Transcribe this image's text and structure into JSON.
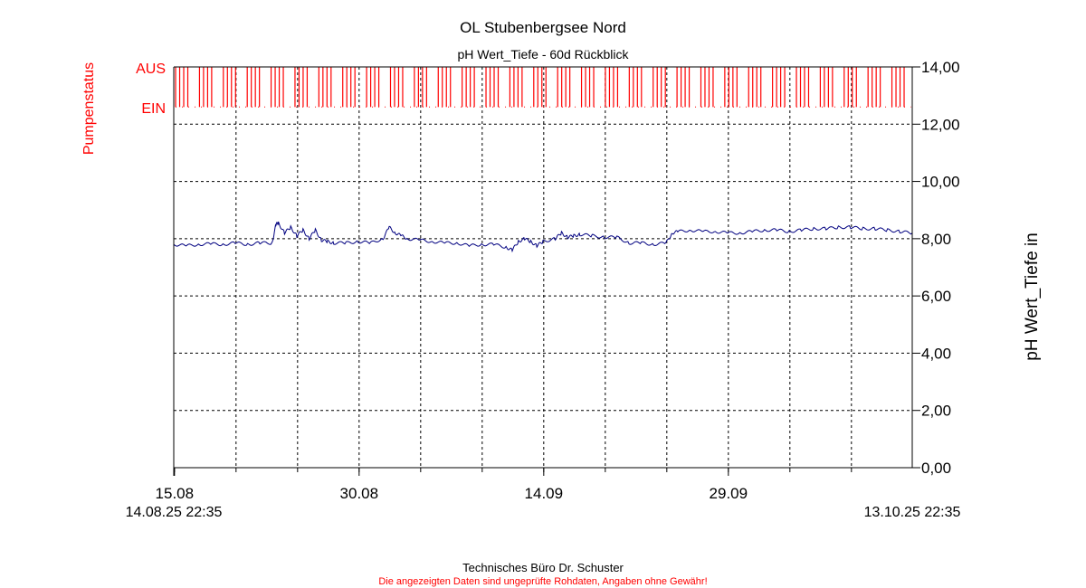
{
  "chart_data": {
    "type": "line",
    "title": "OL Stubenbergsee Nord",
    "subtitle": "pH Wert_Tiefe - 60d Rückblick",
    "ylabel_right": "pH Wert_Tiefe in",
    "ylabel_left": "Pumpenstatus",
    "y_ticks": [
      "0,00",
      "2,00",
      "4,00",
      "6,00",
      "8,00",
      "10,00",
      "12,00",
      "14,00"
    ],
    "ylim": [
      0,
      14
    ],
    "x_range_days": [
      0,
      60
    ],
    "x_ticks": [
      {
        "day": 0.06,
        "label": "15.08"
      },
      {
        "day": 15.06,
        "label": "30.08"
      },
      {
        "day": 30.06,
        "label": "14.09"
      },
      {
        "day": 45.06,
        "label": "29.09"
      }
    ],
    "x_minor_ticks_days": [
      0.06,
      5.06,
      10.06,
      15.06,
      20.06,
      25.06,
      30.06,
      35.06,
      40.06,
      45.06,
      50.06,
      55.06
    ],
    "start_label": "14.08.25 22:35",
    "end_label": "13.10.25 22:35",
    "grid": true,
    "pump_status": {
      "labels": {
        "on": "EIN",
        "off": "AUS"
      },
      "color": "#ff0000",
      "levels": {
        "on": 12.6,
        "off": 14.0
      }
    },
    "series": [
      {
        "color": "#000080",
        "x_days": [
          0,
          1,
          2,
          3,
          4,
          5,
          6,
          7,
          8,
          8.3,
          8.5,
          9,
          9.5,
          10,
          10.5,
          11,
          11.5,
          12,
          12.5,
          13,
          14,
          15,
          16,
          17,
          17.5,
          18,
          18.5,
          19,
          20,
          21,
          22,
          23,
          24,
          25,
          26,
          27,
          27.5,
          28,
          28.5,
          29,
          29.5,
          30,
          31,
          31.5,
          32,
          32.5,
          33,
          34,
          35,
          36,
          37,
          38,
          39,
          40,
          40.5,
          41,
          42,
          43,
          44,
          45,
          46,
          47,
          48,
          49,
          50,
          51,
          52,
          53,
          54,
          55,
          56,
          57,
          58,
          59,
          60
        ],
        "values": [
          7.8,
          7.75,
          7.8,
          7.82,
          7.8,
          7.85,
          7.8,
          7.85,
          7.85,
          8.5,
          8.55,
          8.2,
          8.4,
          8.1,
          8.3,
          8.0,
          8.3,
          7.95,
          7.9,
          7.85,
          7.85,
          7.9,
          7.85,
          8.0,
          8.4,
          8.2,
          8.1,
          8.0,
          7.95,
          7.9,
          7.85,
          7.85,
          7.75,
          7.8,
          7.8,
          7.7,
          7.6,
          7.9,
          8.0,
          7.9,
          7.75,
          7.9,
          8.0,
          8.2,
          8.05,
          8.1,
          8.15,
          8.1,
          8.05,
          8.05,
          7.85,
          7.85,
          7.8,
          7.85,
          8.2,
          8.25,
          8.3,
          8.25,
          8.25,
          8.2,
          8.2,
          8.25,
          8.3,
          8.3,
          8.25,
          8.3,
          8.35,
          8.35,
          8.4,
          8.4,
          8.35,
          8.35,
          8.3,
          8.25,
          8.2
        ]
      }
    ]
  },
  "footer": {
    "company": "Technisches Büro Dr. Schuster",
    "disclaimer": "Die angezeigten Daten sind ungeprüfte Rohdaten, Angaben ohne Gewähr!"
  }
}
